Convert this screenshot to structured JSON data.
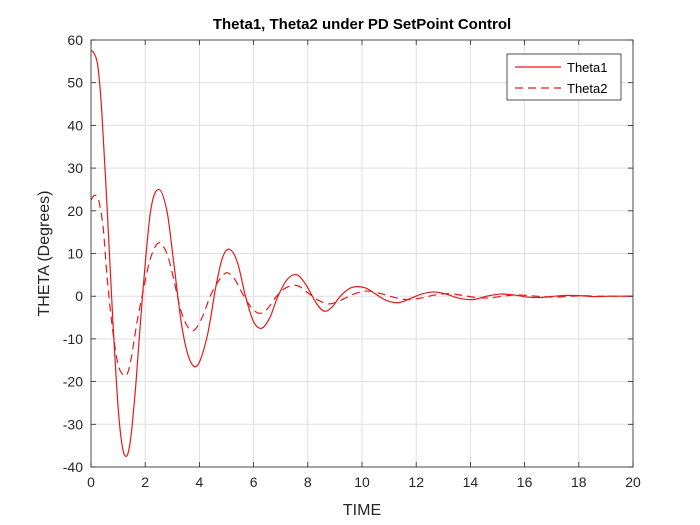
{
  "chart_data": {
    "type": "line",
    "title": "Theta1, Theta2 under PD SetPoint Control",
    "xlabel": "TIME",
    "ylabel": "THETA (Degrees)",
    "xlim": [
      0,
      20
    ],
    "ylim": [
      -40,
      60
    ],
    "xticks": [
      "0",
      "2",
      "4",
      "6",
      "8",
      "10",
      "12",
      "14",
      "16",
      "18",
      "20"
    ],
    "yticks": [
      "-40",
      "-30",
      "-20",
      "-10",
      "0",
      "10",
      "20",
      "30",
      "40",
      "50",
      "60"
    ],
    "grid": true,
    "legend_position": "top-right",
    "line_color": "#e31a1c",
    "series": [
      {
        "name": "Theta1",
        "style": "solid",
        "x": [
          0,
          0.1,
          0.25,
          0.4,
          0.6,
          0.8,
          1.0,
          1.15,
          1.3,
          1.45,
          1.65,
          1.9,
          2.2,
          2.5,
          2.8,
          3.05,
          3.35,
          3.65,
          3.95,
          4.3,
          4.6,
          4.85,
          5.1,
          5.4,
          5.7,
          6.0,
          6.3,
          6.6,
          6.9,
          7.25,
          7.6,
          7.95,
          8.3,
          8.6,
          8.9,
          9.2,
          9.6,
          10.1,
          10.5,
          10.9,
          11.35,
          11.8,
          12.2,
          12.65,
          13.1,
          13.6,
          14.1,
          14.6,
          15.1,
          15.6,
          16.1,
          16.6,
          17.1,
          17.6,
          18.1,
          18.6,
          19.1,
          19.6,
          20
        ],
        "y": [
          57.5,
          57,
          54,
          43,
          20,
          -5,
          -26,
          -35,
          -37.5,
          -34,
          -21,
          0,
          20,
          25,
          20,
          8,
          -7,
          -15,
          -16,
          -9,
          2,
          9,
          11,
          8,
          0,
          -6,
          -7.5,
          -5,
          0,
          4,
          5,
          2.5,
          -1.5,
          -3.5,
          -2.5,
          0,
          2,
          2,
          0.5,
          -1,
          -1.5,
          -0.5,
          0.5,
          1,
          0.5,
          -0.5,
          -0.8,
          0,
          0.5,
          0.3,
          -0.2,
          -0.3,
          0,
          0.2,
          0.1,
          -0.1,
          0,
          0,
          0
        ]
      },
      {
        "name": "Theta2",
        "style": "dashed",
        "x": [
          0,
          0.1,
          0.2,
          0.3,
          0.45,
          0.6,
          0.8,
          1.0,
          1.2,
          1.35,
          1.5,
          1.7,
          1.95,
          2.2,
          2.5,
          2.8,
          3.05,
          3.3,
          3.55,
          3.8,
          4.1,
          4.4,
          4.7,
          5.0,
          5.3,
          5.6,
          5.9,
          6.2,
          6.5,
          6.85,
          7.2,
          7.6,
          8.0,
          8.4,
          8.8,
          9.2,
          9.7,
          10.2,
          10.7,
          11.2,
          11.7,
          12.2,
          12.7,
          13.2,
          13.7,
          14.2,
          14.7,
          15.2,
          15.7,
          16.2,
          16.7,
          17.2,
          17.7,
          18.2,
          18.7,
          19.2,
          19.7,
          20
        ],
        "y": [
          22.5,
          23.5,
          23.5,
          22,
          16,
          4,
          -8,
          -16,
          -18.5,
          -18,
          -14,
          -6,
          2,
          9,
          12.5,
          10,
          4,
          -3,
          -7,
          -8,
          -5,
          0,
          3.5,
          5.5,
          4,
          0.5,
          -2.5,
          -4,
          -3,
          0,
          2,
          2.5,
          0.8,
          -1,
          -1.8,
          -1,
          0.5,
          1.2,
          0.6,
          -0.3,
          -0.8,
          -0.4,
          0.3,
          0.6,
          0.2,
          -0.3,
          -0.4,
          0,
          0.3,
          0.1,
          -0.1,
          -0.2,
          0,
          0.1,
          0,
          0,
          0,
          0
        ]
      }
    ]
  }
}
